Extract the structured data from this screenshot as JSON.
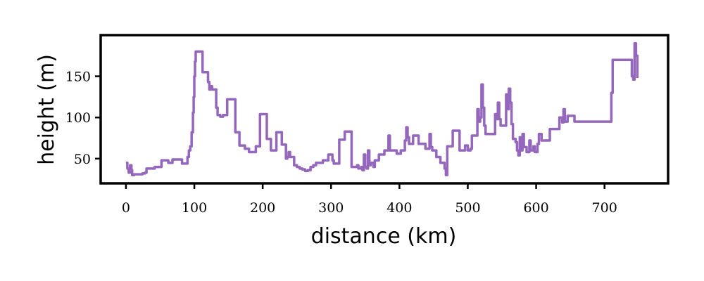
{
  "chart_data": {
    "type": "line",
    "title": "",
    "xlabel": "distance (km)",
    "ylabel": "height (m)",
    "xlim": [
      -37,
      793
    ],
    "ylim": [
      20,
      200
    ],
    "x_ticks": [
      0,
      100,
      200,
      300,
      400,
      500,
      600,
      700
    ],
    "x_tick_labels": [
      "0",
      "100",
      "200",
      "300",
      "400",
      "500",
      "600",
      "700"
    ],
    "y_ticks": [
      50,
      100,
      150
    ],
    "y_tick_labels": [
      "50",
      "100",
      "150"
    ],
    "grid": false,
    "legend": "none",
    "line_style": "steps",
    "series": [
      {
        "color": "#9467bd",
        "points": [
          [
            0,
            45
          ],
          [
            2,
            38
          ],
          [
            4,
            33
          ],
          [
            6,
            42
          ],
          [
            8,
            36
          ],
          [
            9,
            30
          ],
          [
            12,
            31
          ],
          [
            18,
            31
          ],
          [
            24,
            32
          ],
          [
            28,
            33
          ],
          [
            30,
            38
          ],
          [
            36,
            38
          ],
          [
            42,
            40
          ],
          [
            50,
            40
          ],
          [
            52,
            48
          ],
          [
            60,
            48
          ],
          [
            62,
            45
          ],
          [
            66,
            45
          ],
          [
            68,
            49
          ],
          [
            80,
            49
          ],
          [
            82,
            44
          ],
          [
            88,
            44
          ],
          [
            90,
            52
          ],
          [
            92,
            60
          ],
          [
            94,
            65
          ],
          [
            96,
            82
          ],
          [
            98,
            106
          ],
          [
            99,
            125
          ],
          [
            100,
            150
          ],
          [
            101,
            168
          ],
          [
            102,
            180
          ],
          [
            110,
            180
          ],
          [
            112,
            155
          ],
          [
            118,
            155
          ],
          [
            120,
            143
          ],
          [
            122,
            134
          ],
          [
            124,
            138
          ],
          [
            126,
            134
          ],
          [
            130,
            134
          ],
          [
            132,
            112
          ],
          [
            134,
            103
          ],
          [
            138,
            101
          ],
          [
            142,
            103
          ],
          [
            146,
            103
          ],
          [
            148,
            122
          ],
          [
            158,
            122
          ],
          [
            160,
            82
          ],
          [
            164,
            82
          ],
          [
            166,
            66
          ],
          [
            172,
            66
          ],
          [
            174,
            62
          ],
          [
            180,
            58
          ],
          [
            188,
            58
          ],
          [
            190,
            65
          ],
          [
            194,
            65
          ],
          [
            196,
            104
          ],
          [
            204,
            104
          ],
          [
            206,
            74
          ],
          [
            210,
            74
          ],
          [
            212,
            60
          ],
          [
            218,
            60
          ],
          [
            220,
            82
          ],
          [
            226,
            82
          ],
          [
            228,
            67
          ],
          [
            232,
            67
          ],
          [
            234,
            50
          ],
          [
            236,
            52
          ],
          [
            238,
            58
          ],
          [
            240,
            52
          ],
          [
            244,
            52
          ],
          [
            246,
            42
          ],
          [
            250,
            40
          ],
          [
            254,
            38
          ],
          [
            258,
            37
          ],
          [
            262,
            35
          ],
          [
            266,
            36
          ],
          [
            270,
            40
          ],
          [
            274,
            42
          ],
          [
            278,
            45
          ],
          [
            284,
            45
          ],
          [
            288,
            48
          ],
          [
            294,
            48
          ],
          [
            296,
            55
          ],
          [
            302,
            48
          ],
          [
            304,
            44
          ],
          [
            310,
            44
          ],
          [
            312,
            73
          ],
          [
            318,
            73
          ],
          [
            320,
            83
          ],
          [
            328,
            83
          ],
          [
            330,
            40
          ],
          [
            338,
            42
          ],
          [
            340,
            38
          ],
          [
            344,
            40
          ],
          [
            346,
            36
          ],
          [
            348,
            55
          ],
          [
            350,
            40
          ],
          [
            352,
            38
          ],
          [
            354,
            60
          ],
          [
            356,
            42
          ],
          [
            358,
            45
          ],
          [
            362,
            40
          ],
          [
            364,
            48
          ],
          [
            368,
            48
          ],
          [
            370,
            55
          ],
          [
            376,
            55
          ],
          [
            378,
            60
          ],
          [
            382,
            60
          ],
          [
            384,
            78
          ],
          [
            386,
            60
          ],
          [
            394,
            60
          ],
          [
            396,
            56
          ],
          [
            400,
            56
          ],
          [
            402,
            60
          ],
          [
            406,
            60
          ],
          [
            408,
            72
          ],
          [
            410,
            88
          ],
          [
            412,
            76
          ],
          [
            414,
            68
          ],
          [
            418,
            68
          ],
          [
            420,
            78
          ],
          [
            426,
            78
          ],
          [
            428,
            68
          ],
          [
            436,
            68
          ],
          [
            438,
            62
          ],
          [
            442,
            62
          ],
          [
            444,
            80
          ],
          [
            446,
            64
          ],
          [
            448,
            60
          ],
          [
            452,
            60
          ],
          [
            454,
            52
          ],
          [
            458,
            52
          ],
          [
            460,
            45
          ],
          [
            464,
            45
          ],
          [
            466,
            38
          ],
          [
            468,
            30
          ],
          [
            470,
            65
          ],
          [
            476,
            65
          ],
          [
            478,
            84
          ],
          [
            486,
            84
          ],
          [
            488,
            60
          ],
          [
            494,
            60
          ],
          [
            496,
            66
          ],
          [
            500,
            60
          ],
          [
            504,
            62
          ],
          [
            506,
            78
          ],
          [
            512,
            78
          ],
          [
            514,
            110
          ],
          [
            516,
            95
          ],
          [
            518,
            100
          ],
          [
            520,
            140
          ],
          [
            522,
            112
          ],
          [
            524,
            90
          ],
          [
            526,
            80
          ],
          [
            538,
            80
          ],
          [
            540,
            104
          ],
          [
            542,
            98
          ],
          [
            544,
            118
          ],
          [
            546,
            98
          ],
          [
            548,
            90
          ],
          [
            556,
            128
          ],
          [
            558,
            110
          ],
          [
            560,
            135
          ],
          [
            562,
            118
          ],
          [
            564,
            92
          ],
          [
            566,
            74
          ],
          [
            570,
            70
          ],
          [
            572,
            60
          ],
          [
            574,
            54
          ],
          [
            576,
            76
          ],
          [
            578,
            60
          ],
          [
            580,
            80
          ],
          [
            582,
            64
          ],
          [
            586,
            58
          ],
          [
            590,
            72
          ],
          [
            592,
            60
          ],
          [
            596,
            65
          ],
          [
            598,
            58
          ],
          [
            602,
            68
          ],
          [
            604,
            80
          ],
          [
            608,
            72
          ],
          [
            618,
            72
          ],
          [
            620,
            86
          ],
          [
            632,
            86
          ],
          [
            634,
            100
          ],
          [
            638,
            94
          ],
          [
            640,
            110
          ],
          [
            642,
            95
          ],
          [
            646,
            102
          ],
          [
            654,
            102
          ],
          [
            656,
            95
          ],
          [
            708,
            95
          ],
          [
            710,
            130
          ],
          [
            712,
            170
          ],
          [
            738,
            170
          ],
          [
            740,
            150
          ],
          [
            742,
            146
          ],
          [
            744,
            190
          ],
          [
            746,
            175
          ],
          [
            748,
            148
          ]
        ]
      }
    ]
  }
}
